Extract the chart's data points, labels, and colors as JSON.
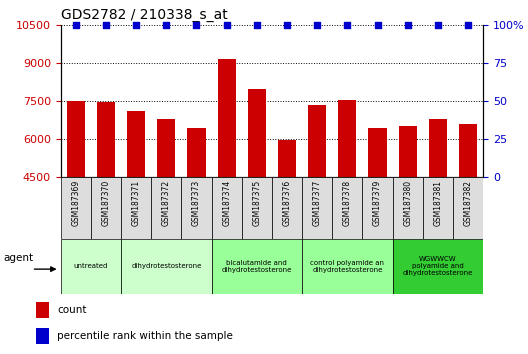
{
  "title": "GDS2782 / 210338_s_at",
  "categories": [
    "GSM187369",
    "GSM187370",
    "GSM187371",
    "GSM187372",
    "GSM187373",
    "GSM187374",
    "GSM187375",
    "GSM187376",
    "GSM187377",
    "GSM187378",
    "GSM187379",
    "GSM187380",
    "GSM187381",
    "GSM187382"
  ],
  "bar_values": [
    7500,
    7450,
    7100,
    6800,
    6450,
    9150,
    7950,
    5950,
    7350,
    7550,
    6450,
    6500,
    6800,
    6600
  ],
  "percentile_values": [
    100,
    100,
    100,
    100,
    100,
    100,
    100,
    100,
    100,
    100,
    100,
    100,
    100,
    100
  ],
  "bar_color": "#cc0000",
  "percentile_color": "#0000cc",
  "ylim_left": [
    4500,
    10500
  ],
  "ylim_right": [
    0,
    100
  ],
  "yticks_left": [
    4500,
    6000,
    7500,
    9000,
    10500
  ],
  "yticks_right": [
    0,
    25,
    50,
    75,
    100
  ],
  "ytick_labels_right": [
    "0",
    "25",
    "50",
    "75",
    "100%"
  ],
  "background_color": "#ffffff",
  "agent_groups": [
    {
      "label": "untreated",
      "indices": [
        0,
        1
      ],
      "color": "#ccffcc"
    },
    {
      "label": "dihydrotestosterone",
      "indices": [
        2,
        3,
        4
      ],
      "color": "#ccffcc"
    },
    {
      "label": "bicalutamide and\ndihydrotestosterone",
      "indices": [
        5,
        6,
        7
      ],
      "color": "#99ff99"
    },
    {
      "label": "control polyamide an\ndihydrotestosterone",
      "indices": [
        8,
        9,
        10
      ],
      "color": "#99ff99"
    },
    {
      "label": "WGWWCW\npolyamide and\ndihydrotestosterone",
      "indices": [
        11,
        12,
        13
      ],
      "color": "#33cc33"
    }
  ],
  "legend_items": [
    {
      "label": "count",
      "color": "#cc0000"
    },
    {
      "label": "percentile rank within the sample",
      "color": "#0000cc"
    }
  ],
  "agent_label": "agent"
}
